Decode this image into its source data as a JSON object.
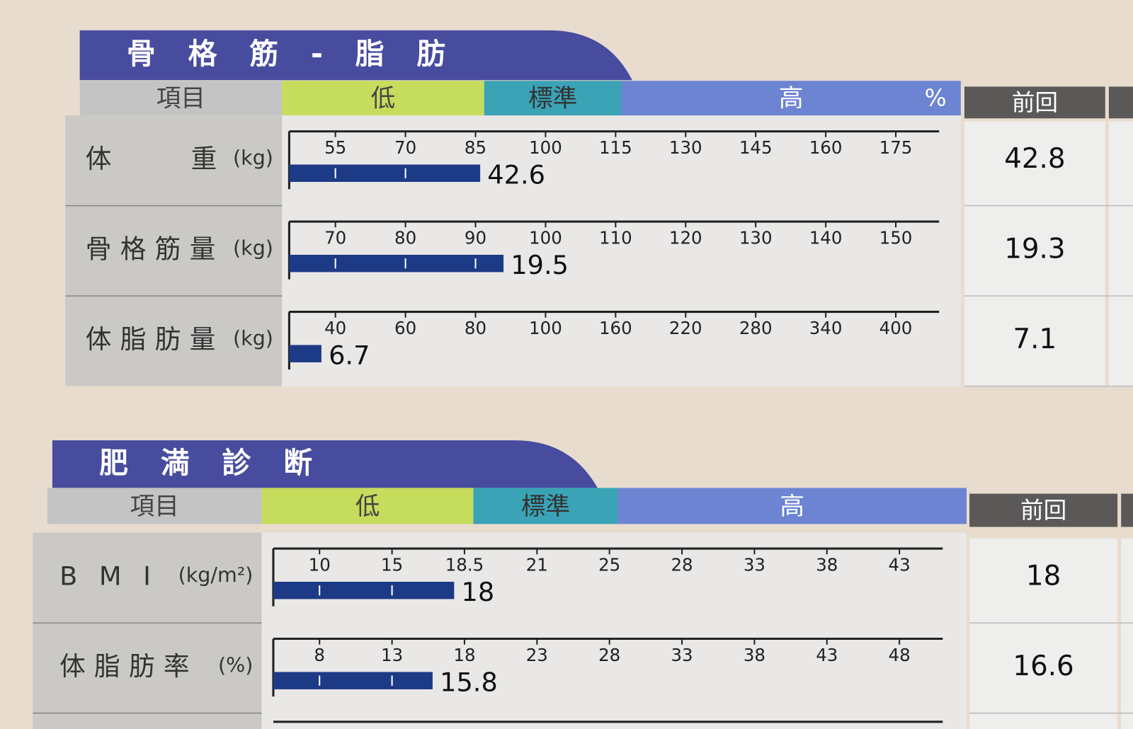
{
  "sections": [
    {
      "title": "骨格筋-脂肪",
      "header": {
        "item": "項目",
        "low": "低",
        "standard": "標準",
        "high": "高",
        "unit": "%",
        "previous": "前回"
      },
      "rows": [
        {
          "label": "体重",
          "unit": "(kg)",
          "ticks": [
            55,
            70,
            85,
            100,
            115,
            130,
            145,
            160,
            175
          ],
          "value": 42.6,
          "bar_level": 86,
          "previous": 42.8
        },
        {
          "label": "骨格筋量",
          "unit": "(kg)",
          "ticks": [
            70,
            80,
            90,
            100,
            110,
            120,
            130,
            140,
            150
          ],
          "value": 19.5,
          "bar_level": 94,
          "previous": 19.3
        },
        {
          "label": "体脂肪量",
          "unit": "(kg)",
          "ticks": [
            40,
            60,
            80,
            100,
            160,
            220,
            280,
            340,
            400
          ],
          "value": 6.7,
          "bar_level": 36,
          "previous": 7.1
        }
      ]
    },
    {
      "title": "肥満診断",
      "header": {
        "item": "項目",
        "low": "低",
        "standard": "標準",
        "high": "高",
        "previous": "前回"
      },
      "rows": [
        {
          "label": "BMI",
          "unit": "(kg/m²)",
          "ticks": [
            10,
            15,
            18.5,
            21,
            25,
            28,
            33,
            38,
            43
          ],
          "value": 18.0,
          "previous": 18.0
        },
        {
          "label": "体脂肪率",
          "unit": "(%)",
          "ticks": [
            8,
            13,
            18,
            23,
            28,
            33,
            38,
            43,
            48
          ],
          "value": 15.8,
          "previous": 16.6
        }
      ]
    }
  ]
}
